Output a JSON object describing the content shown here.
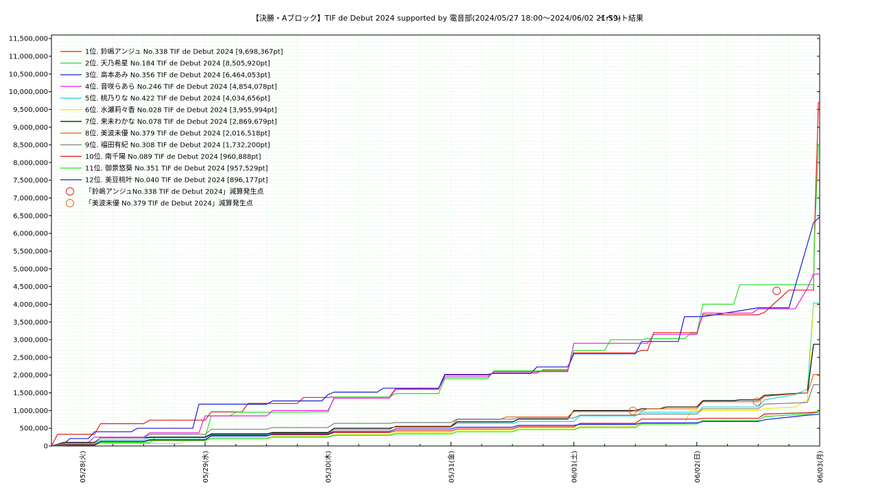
{
  "chart_data": {
    "type": "line",
    "title": "【決勝・Aブロック】TIF de Debut 2024 supported by 電音部(2024/05/27 18:00〜2024/06/02 21:59)",
    "subtitle": "イベント結果",
    "xlabel": "",
    "ylabel": "",
    "ylim": [
      0,
      11600000
    ],
    "yticks": [
      0,
      500000,
      1000000,
      1500000,
      2000000,
      2500000,
      3000000,
      3500000,
      4000000,
      4500000,
      5000000,
      5500000,
      6000000,
      6500000,
      7000000,
      7500000,
      8000000,
      8500000,
      9000000,
      9500000,
      10000000,
      10500000,
      11000000,
      11500000
    ],
    "ytick_labels": [
      "0",
      "500,000",
      "1,000,000",
      "1,500,000",
      "2,000,000",
      "2,500,000",
      "3,000,000",
      "3,500,000",
      "4,000,000",
      "4,500,000",
      "5,000,000",
      "5,500,000",
      "6,000,000",
      "6,500,000",
      "7,000,000",
      "7,500,000",
      "8,000,000",
      "8,500,000",
      "9,000,000",
      "9,500,000",
      "10,000,000",
      "10,500,000",
      "11,000,000",
      "11,500,000"
    ],
    "xlim": [
      -0.25,
      6.0
    ],
    "xticks": [
      0,
      1,
      2,
      3,
      4,
      5,
      6
    ],
    "xtick_labels": [
      "05/28(火)",
      "05/29(水)",
      "05/30(木)",
      "05/31(金)",
      "06/01(土)",
      "06/02(日)",
      "06/03(月)"
    ],
    "grid": true,
    "legend_position": "top-left",
    "series": [
      {
        "name": "1位. 鈴嶋アンジュ No.338 TIF de Debut 2024 [9,698,367pt]",
        "color": "#e41a1c",
        "x": [
          -0.25,
          -0.2,
          -0.15,
          0.1,
          0.15,
          0.5,
          0.55,
          1.0,
          1.05,
          1.3,
          1.35,
          1.75,
          1.8,
          2.0,
          2.05,
          2.5,
          2.55,
          2.9,
          2.95,
          3.3,
          3.35,
          3.7,
          3.75,
          3.95,
          4.0,
          4.5,
          4.55,
          4.6,
          4.65,
          5.0,
          5.05,
          5.5,
          5.55,
          5.75,
          5.95,
          5.96,
          5.99,
          6.0
        ],
        "y": [
          0,
          330000,
          330000,
          330000,
          630000,
          630000,
          730000,
          730000,
          960000,
          960000,
          1200000,
          1200000,
          1370000,
          1370000,
          1380000,
          1380000,
          1620000,
          1620000,
          2000000,
          2000000,
          2060000,
          2060000,
          2150000,
          2150000,
          2630000,
          2630000,
          2700000,
          2700000,
          3200000,
          3200000,
          3700000,
          3700000,
          3770000,
          4400000,
          4400000,
          6300000,
          9698367,
          9698367
        ]
      },
      {
        "name": "2位. 天乃希星 No.184 TIF de Debut 2024 [8,505,920pt]",
        "color": "#2ddc2d",
        "x": [
          -0.25,
          -0.2,
          0.1,
          0.15,
          0.55,
          0.6,
          1.0,
          1.05,
          1.2,
          1.25,
          1.8,
          1.85,
          2.0,
          2.05,
          2.5,
          2.55,
          2.9,
          2.95,
          3.3,
          3.35,
          3.95,
          4.0,
          4.25,
          4.3,
          4.55,
          4.6,
          4.9,
          4.95,
          5.0,
          5.05,
          5.3,
          5.35,
          5.75,
          5.95,
          5.96,
          5.99,
          6.0
        ],
        "y": [
          0,
          30000,
          30000,
          90000,
          90000,
          250000,
          250000,
          850000,
          850000,
          950000,
          950000,
          960000,
          960000,
          1380000,
          1380000,
          1480000,
          1480000,
          1900000,
          1900000,
          2120000,
          2120000,
          2700000,
          2700000,
          3000000,
          3000000,
          3030000,
          3030000,
          3180000,
          3180000,
          4000000,
          4000000,
          4550000,
          4550000,
          4550000,
          6000000,
          8505920,
          8505920
        ]
      },
      {
        "name": "3位. 高本あみ No.356 TIF de Debut 2024 [6,464,053pt]",
        "color": "#1a1ad6",
        "x": [
          -0.25,
          -0.15,
          -0.1,
          0.05,
          0.1,
          0.4,
          0.45,
          0.9,
          0.95,
          1.5,
          1.55,
          1.95,
          2.0,
          2.05,
          2.4,
          2.45,
          2.9,
          2.95,
          3.3,
          3.35,
          3.65,
          3.7,
          3.95,
          4.0,
          4.5,
          4.55,
          4.85,
          4.9,
          5.0,
          5.05,
          5.5,
          5.55,
          5.75,
          5.8,
          5.95,
          6.0
        ],
        "y": [
          0,
          50000,
          210000,
          210000,
          400000,
          400000,
          500000,
          500000,
          1180000,
          1180000,
          1270000,
          1270000,
          1450000,
          1520000,
          1520000,
          1630000,
          1630000,
          2020000,
          2020000,
          2050000,
          2050000,
          2230000,
          2230000,
          2600000,
          2600000,
          2950000,
          2950000,
          3650000,
          3650000,
          3650000,
          3900000,
          3900000,
          3900000,
          4500000,
          6300000,
          6464053
        ]
      },
      {
        "name": "4位. 音咲らあら No.246 TIF de Debut 2024 [4,854,078pt]",
        "color": "#e21ae2",
        "x": [
          -0.25,
          -0.15,
          0.05,
          0.1,
          0.5,
          0.55,
          0.95,
          1.0,
          1.5,
          1.55,
          2.0,
          2.05,
          2.5,
          2.55,
          2.9,
          2.95,
          3.3,
          3.35,
          3.95,
          4.0,
          4.6,
          4.65,
          5.0,
          5.05,
          5.45,
          5.5,
          5.8,
          5.9,
          5.95,
          6.0
        ],
        "y": [
          0,
          100000,
          100000,
          250000,
          250000,
          370000,
          370000,
          850000,
          850000,
          1000000,
          1000000,
          1350000,
          1350000,
          1600000,
          1600000,
          1950000,
          1950000,
          2100000,
          2100000,
          2900000,
          2900000,
          3150000,
          3150000,
          3750000,
          3750000,
          3870000,
          3870000,
          4450000,
          4850000,
          4854078
        ]
      },
      {
        "name": "5位. 桃乃りな No.422 TIF de Debut 2024 [4,034,656pt]",
        "color": "#1ad6e2",
        "x": [
          -0.25,
          -0.15,
          0.1,
          0.15,
          0.5,
          0.55,
          1.0,
          1.05,
          1.5,
          1.55,
          2.0,
          2.05,
          2.5,
          2.55,
          3.0,
          3.05,
          3.5,
          3.55,
          4.0,
          4.05,
          4.5,
          4.55,
          5.0,
          5.05,
          5.5,
          5.55,
          5.8,
          5.9,
          5.95,
          6.0
        ],
        "y": [
          0,
          80000,
          80000,
          170000,
          170000,
          230000,
          230000,
          320000,
          320000,
          360000,
          360000,
          500000,
          500000,
          550000,
          550000,
          640000,
          640000,
          690000,
          690000,
          850000,
          850000,
          950000,
          950000,
          1100000,
          1100000,
          1300000,
          1450000,
          1600000,
          4034656,
          4034656
        ]
      },
      {
        "name": "6位. 水瀬莉々香 No.028 TIF de Debut 2024 [3,955,994pt]",
        "color": "#e6e61a",
        "x": [
          -0.25,
          -0.1,
          0.1,
          0.15,
          0.8,
          0.85,
          1.5,
          1.55,
          2.0,
          2.05,
          2.5,
          2.55,
          3.0,
          3.05,
          3.5,
          3.55,
          4.0,
          4.05,
          4.5,
          4.55,
          4.9,
          4.95,
          5.5,
          5.55,
          5.8,
          5.9,
          5.95,
          6.0
        ],
        "y": [
          0,
          20000,
          20000,
          70000,
          70000,
          180000,
          180000,
          270000,
          270000,
          320000,
          320000,
          380000,
          380000,
          440000,
          440000,
          500000,
          500000,
          560000,
          560000,
          640000,
          640000,
          1000000,
          1000000,
          1050000,
          1100000,
          1300000,
          3955994,
          3955994
        ]
      },
      {
        "name": "7位. 来未わかな No.078 TIF de Debut 2024 [2,869,679pt]",
        "color": "#000000",
        "x": [
          -0.25,
          -0.15,
          0.1,
          0.15,
          0.5,
          0.55,
          1.0,
          1.05,
          1.5,
          1.55,
          2.0,
          2.05,
          2.5,
          2.55,
          3.0,
          3.05,
          3.5,
          3.55,
          3.95,
          4.0,
          4.5,
          4.55,
          4.7,
          4.75,
          5.0,
          5.05,
          5.3,
          5.35,
          5.5,
          5.55,
          5.9,
          5.95,
          6.0
        ],
        "y": [
          0,
          100000,
          100000,
          230000,
          230000,
          250000,
          250000,
          340000,
          340000,
          380000,
          380000,
          500000,
          500000,
          540000,
          540000,
          680000,
          680000,
          760000,
          760000,
          1000000,
          1000000,
          1050000,
          1050000,
          1100000,
          1100000,
          1280000,
          1280000,
          1300000,
          1300000,
          1430000,
          1500000,
          2869679,
          2869679
        ]
      },
      {
        "name": "8位. 美波未優 No.379 TIF de Debut 2024 [2,016,518pt]",
        "color": "#e4641a",
        "x": [
          -0.25,
          -0.15,
          0.1,
          0.15,
          0.5,
          0.55,
          1.0,
          1.05,
          1.5,
          1.55,
          2.0,
          2.05,
          2.5,
          2.55,
          3.0,
          3.05,
          3.4,
          3.45,
          3.95,
          4.0,
          4.45,
          4.5,
          4.55,
          4.6,
          5.0,
          5.05,
          5.5,
          5.55,
          5.9,
          5.95,
          6.0
        ],
        "y": [
          0,
          50000,
          50000,
          120000,
          120000,
          160000,
          160000,
          290000,
          290000,
          330000,
          330000,
          460000,
          460000,
          560000,
          560000,
          750000,
          750000,
          820000,
          820000,
          970000,
          970000,
          990000,
          990000,
          1050000,
          1050000,
          1250000,
          1250000,
          1400000,
          1500000,
          2016518,
          2016518
        ]
      },
      {
        "name": "9位. 福田有紀 No.308 TIF de Debut 2024 [1,732,200pt]",
        "color": "#808080",
        "x": [
          -0.25,
          -0.15,
          0.1,
          0.15,
          0.5,
          0.55,
          1.0,
          1.05,
          1.5,
          1.55,
          2.0,
          2.05,
          2.5,
          2.55,
          3.0,
          3.05,
          3.5,
          3.55,
          4.0,
          4.05,
          4.5,
          4.55,
          5.0,
          5.05,
          5.5,
          5.55,
          5.9,
          5.95,
          6.0
        ],
        "y": [
          0,
          80000,
          80000,
          230000,
          230000,
          330000,
          330000,
          470000,
          470000,
          520000,
          520000,
          640000,
          640000,
          660000,
          660000,
          760000,
          760000,
          790000,
          790000,
          870000,
          870000,
          900000,
          900000,
          1050000,
          1050000,
          1180000,
          1230000,
          1732200,
          1732200
        ]
      },
      {
        "name": "10位. 南千陽 No.089 TIF de Debut 2024 [960,888pt]",
        "color": "#d01010",
        "x": [
          -0.25,
          -0.15,
          0.1,
          0.15,
          0.5,
          0.55,
          1.0,
          1.05,
          1.5,
          1.55,
          2.0,
          2.05,
          2.5,
          2.55,
          3.0,
          3.05,
          3.5,
          3.55,
          4.0,
          4.05,
          4.5,
          4.55,
          5.0,
          5.05,
          5.5,
          5.55,
          5.9,
          6.0
        ],
        "y": [
          0,
          40000,
          40000,
          130000,
          130000,
          170000,
          170000,
          300000,
          300000,
          320000,
          320000,
          380000,
          380000,
          430000,
          430000,
          480000,
          480000,
          540000,
          540000,
          640000,
          640000,
          760000,
          760000,
          780000,
          780000,
          900000,
          940000,
          960888
        ]
      },
      {
        "name": "11位. 御景悠葵 No.351 TIF de Debut 2024 [957,529pt]",
        "color": "#1ae21a",
        "x": [
          -0.25,
          -0.15,
          0.1,
          0.15,
          0.5,
          0.55,
          1.0,
          1.05,
          1.5,
          1.55,
          2.0,
          2.05,
          2.5,
          2.55,
          3.0,
          3.05,
          3.5,
          3.55,
          4.0,
          4.05,
          4.5,
          4.55,
          5.0,
          5.05,
          5.5,
          5.55,
          5.9,
          6.0
        ],
        "y": [
          0,
          30000,
          30000,
          110000,
          110000,
          150000,
          150000,
          220000,
          220000,
          250000,
          250000,
          300000,
          300000,
          340000,
          340000,
          400000,
          400000,
          460000,
          460000,
          520000,
          520000,
          620000,
          620000,
          720000,
          720000,
          830000,
          900000,
          957529
        ]
      },
      {
        "name": "12位. 美豆桃叶 No.040 TIF de Debut 2024 [896,177pt]",
        "color": "#1a1ae2",
        "x": [
          -0.25,
          -0.15,
          0.1,
          0.15,
          0.5,
          0.55,
          1.0,
          1.05,
          1.5,
          1.55,
          2.0,
          2.05,
          2.5,
          2.55,
          3.0,
          3.05,
          3.5,
          3.55,
          4.0,
          4.05,
          4.5,
          4.55,
          5.0,
          5.05,
          5.5,
          5.55,
          5.9,
          6.0
        ],
        "y": [
          0,
          20000,
          20000,
          130000,
          130000,
          180000,
          180000,
          280000,
          280000,
          340000,
          340000,
          410000,
          410000,
          480000,
          480000,
          530000,
          530000,
          580000,
          580000,
          610000,
          610000,
          650000,
          650000,
          690000,
          690000,
          740000,
          870000,
          896177
        ]
      }
    ],
    "markers": [
      {
        "name": "「鈴嶋アンジュNo.338 TIF de Debut 2024」減算発生点",
        "color": "#e41a1c",
        "x": [
          5.65
        ],
        "y": [
          4380000
        ]
      },
      {
        "name": "「美波未優 No.379 TIF de Debut 2024」減算発生点",
        "color": "#e4641a",
        "x": [
          4.48,
          5.49
        ],
        "y": [
          990000,
          1250000
        ]
      }
    ]
  }
}
